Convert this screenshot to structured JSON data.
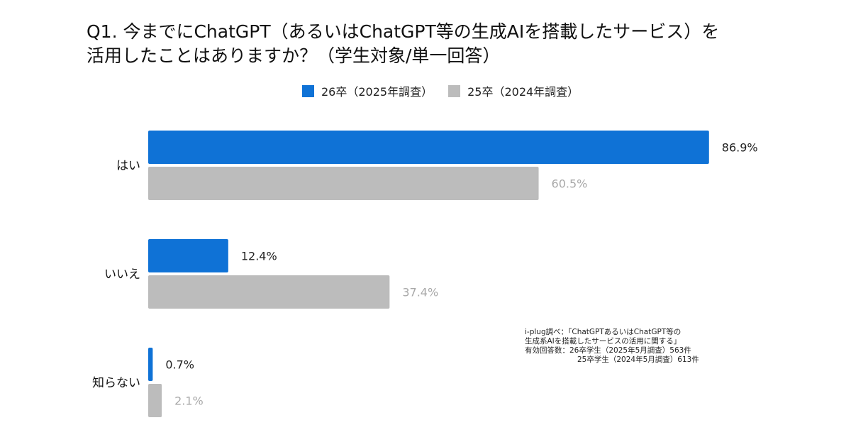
{
  "title": {
    "line1": "Q1. 今までにChatGPT（あるいはChatGPT等の生成AIを搭載したサービス）を",
    "line2": "活用したことはありますか？（学生対象/単一回答）"
  },
  "chart_data": {
    "type": "bar",
    "orientation": "horizontal",
    "categories": [
      "はい",
      "いいえ",
      "知らない"
    ],
    "series": [
      {
        "name": "26卒（2025年調査）",
        "values": [
          86.9,
          12.4,
          0.7
        ],
        "color": "#0f72d6",
        "label_color": "#222222"
      },
      {
        "name": "25卒（2024年調査）",
        "values": [
          60.5,
          37.4,
          2.1
        ],
        "color": "#bcbcbc",
        "label_color": "#a8a8a8"
      }
    ],
    "value_suffix": "%",
    "xlim": [
      0,
      100
    ],
    "grid": false,
    "legend": "top"
  },
  "note": {
    "line1": "i-plug調べ：「ChatGPTあるいはChatGPT等の",
    "line2": "生成系AIを搭載したサービスの活用に関する」",
    "line3": "有効回答数：26卒学生（2025年5月調査）563件",
    "line4": "25卒学生（2024年5月調査）613件"
  }
}
